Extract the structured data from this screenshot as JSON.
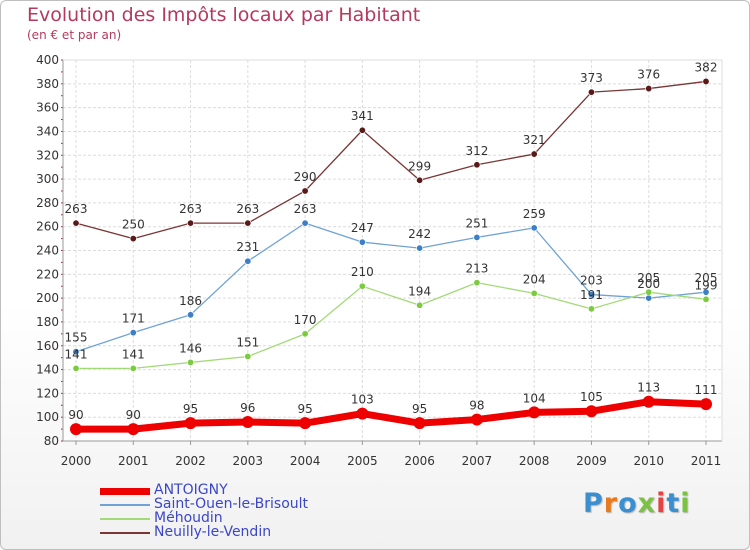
{
  "title": "Evolution des Impôts locaux par Habitant",
  "subtitle": "(en € et par an)",
  "logo_text": "Proxiti",
  "chart_data": {
    "type": "line",
    "title": "Evolution des Impôts locaux par Habitant",
    "subtitle": "(en € et par an)",
    "xlabel": "",
    "ylabel": "",
    "categories": [
      "2000",
      "2001",
      "2002",
      "2003",
      "2004",
      "2005",
      "2006",
      "2007",
      "2008",
      "2009",
      "2010",
      "2011"
    ],
    "ylim": [
      80,
      400
    ],
    "yticks": [
      "80",
      "100",
      "120",
      "140",
      "160",
      "180",
      "200",
      "220",
      "240",
      "260",
      "280",
      "300",
      "320",
      "340",
      "360",
      "380",
      "400"
    ],
    "grid": true,
    "legend_position": "bottom-left",
    "series": [
      {
        "name": "ANTOIGNY",
        "color": "#ee0000",
        "values": [
          90,
          90,
          95,
          96,
          95,
          103,
          95,
          98,
          104,
          105,
          113,
          111
        ]
      },
      {
        "name": "Saint-Ouen-le-Brisoult",
        "color": "#6fa3d6",
        "values": [
          155,
          171,
          186,
          231,
          263,
          247,
          242,
          251,
          259,
          203,
          200,
          205
        ]
      },
      {
        "name": "Méhoudin",
        "color": "#a3da78",
        "values": [
          141,
          141,
          146,
          151,
          170,
          210,
          194,
          213,
          204,
          191,
          205,
          199
        ]
      },
      {
        "name": "Neuilly-le-Vendin",
        "color": "#7a3535",
        "values": [
          263,
          250,
          263,
          263,
          290,
          341,
          299,
          312,
          321,
          373,
          376,
          382
        ]
      }
    ],
    "data_labels": [
      [
        "90",
        "90",
        "95",
        "96",
        "95",
        "103",
        "95",
        "98",
        "104",
        "105",
        "113",
        "111"
      ],
      [
        "155",
        "171",
        "186",
        "231",
        "263",
        "247",
        "242",
        "251",
        "259",
        "203",
        "200",
        "205"
      ],
      [
        "141",
        "141",
        "146",
        "151",
        "170",
        "210",
        "194",
        "213",
        "204",
        "191",
        "205",
        "199"
      ],
      [
        "263",
        "250",
        "263",
        "263",
        "290",
        "341",
        "299",
        "312",
        "321",
        "373",
        "376",
        "382"
      ]
    ]
  }
}
